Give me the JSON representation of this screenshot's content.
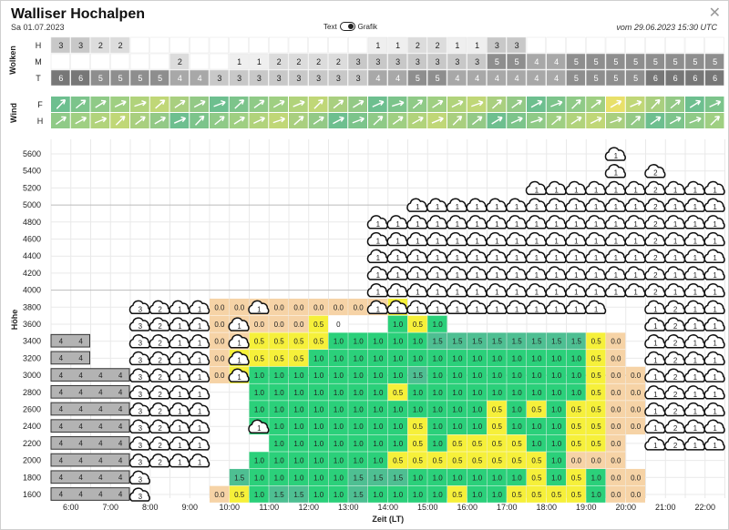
{
  "header": {
    "title": "Walliser Hochalpen",
    "date": "Sa 01.07.2023",
    "toggle_left": "Text",
    "toggle_right": "Grafik",
    "issued": "vom 29.06.2023 15:30 UTC",
    "close_icon": "close-icon"
  },
  "clouds": {
    "group_label": "Wolken",
    "rows": [
      {
        "label": "H",
        "values": [
          "3",
          "3",
          "2",
          "2",
          "",
          "",
          "",
          "",
          "",
          "",
          "",
          "",
          "",
          "",
          "",
          "",
          "1",
          "1",
          "2",
          "2",
          "1",
          "1",
          "3",
          "3",
          "",
          "",
          "",
          "",
          "",
          "",
          "",
          "",
          "",
          ""
        ]
      },
      {
        "label": "M",
        "values": [
          "",
          "",
          "",
          "",
          "",
          "",
          "2",
          "",
          "",
          "1",
          "1",
          "2",
          "2",
          "2",
          "2",
          "3",
          "3",
          "3",
          "3",
          "3",
          "3",
          "3",
          "5",
          "5",
          "4",
          "4",
          "5",
          "5",
          "5",
          "5",
          "5",
          "5",
          "5",
          "5"
        ]
      },
      {
        "label": "T",
        "values": [
          "6",
          "6",
          "5",
          "5",
          "5",
          "5",
          "4",
          "4",
          "3",
          "3",
          "3",
          "3",
          "3",
          "3",
          "3",
          "3",
          "4",
          "4",
          "5",
          "5",
          "4",
          "4",
          "4",
          "4",
          "4",
          "4",
          "5",
          "5",
          "5",
          "5",
          "6",
          "6",
          "6",
          "6"
        ]
      }
    ]
  },
  "wind": {
    "group_label": "Wind",
    "rows": [
      {
        "label": "F",
        "icon": "wind-arrow-icon"
      },
      {
        "label": "H",
        "icon": "wind-arrow-icon"
      }
    ]
  },
  "chart": {
    "y_axis_label": "Höhe",
    "x_axis_label": "Zeit (LT)",
    "y_ticks": [
      "1600",
      "1800",
      "2000",
      "2200",
      "2400",
      "2600",
      "2800",
      "3000",
      "3200",
      "3400",
      "3600",
      "3800",
      "4000",
      "4200",
      "4400",
      "4600",
      "4800",
      "5000",
      "5200",
      "5400",
      "5600"
    ],
    "x_ticks": [
      "6:00",
      "7:00",
      "8:00",
      "9:00",
      "10:00",
      "11:00",
      "12:00",
      "13:00",
      "14:00",
      "15:00",
      "16:00",
      "17:00",
      "18:00",
      "19:00",
      "20:00",
      "21:00",
      "22:00"
    ],
    "legend_colors": {
      "0.0": "#f6d3a6",
      "0.5": "#f6f03a",
      "1.0": "#2bd07a",
      "1.5": "#4ebf92",
      "4": "#b3b3b3"
    }
  },
  "chart_data": {
    "type": "heatmap",
    "x_axis_label": "Zeit (LT)",
    "y_axis_label": "Höhe",
    "x": [
      "6:00",
      "7:00",
      "8:00",
      "9:00",
      "10:00",
      "11:00",
      "12:00",
      "13:00",
      "14:00",
      "15:00",
      "16:00",
      "17:00",
      "18:00",
      "19:00",
      "20:00",
      "21:00",
      "22:00"
    ],
    "y": [
      "1600",
      "1800",
      "2000",
      "2200",
      "2400",
      "2600",
      "2800",
      "3000",
      "3200",
      "3400",
      "3600",
      "3800",
      "4000",
      "4200",
      "4400",
      "4600",
      "4800",
      "5000",
      "5200",
      "5400",
      "5600"
    ],
    "layers": [
      {
        "start_col": 8,
        "values_by_row": {
          "3800": [
            "0.0",
            "0.0",
            "0.0",
            "0.0",
            "0.0",
            "0.0",
            "0.0",
            "0.0",
            "0.0",
            "0.5",
            "",
            "",
            "",
            "",
            ""
          ],
          "3600": [
            "0.0",
            "0.0",
            "0.0",
            "0.0",
            "0.0",
            "0.5",
            "0",
            "",
            "",
            "1.0",
            "0.5",
            "1.0"
          ]
        }
      },
      {
        "start_col": 8,
        "values_by_row": {
          "3400": [
            "0.0",
            "0.0",
            "0.5",
            "0.5",
            "0.5",
            "0.5",
            "1.0",
            "1.0",
            "1.0",
            "1.0",
            "1.0",
            "1.5",
            "1.5",
            "1.5",
            "1.5",
            "1.5",
            "1.5",
            "1.5",
            "1.5",
            "0.5",
            "0.0"
          ],
          "3200": [
            "0.0",
            "0.5",
            "0.5",
            "0.5",
            "0.5",
            "1.0",
            "1.0",
            "1.0",
            "1.0",
            "1.0",
            "1.0",
            "1.0",
            "1.0",
            "1.0",
            "1.0",
            "1.0",
            "1.0",
            "1.0",
            "1.0",
            "0.5",
            "0.0"
          ],
          "3000": [
            "0.0",
            "0.5",
            "1.0",
            "1.0",
            "1.0",
            "1.0",
            "1.0",
            "1.0",
            "1.0",
            "1.0",
            "1.5",
            "1.0",
            "1.0",
            "1.0",
            "1.0",
            "1.0",
            "1.0",
            "1.0",
            "1.0",
            "0.5",
            "0.0",
            "0.0"
          ],
          "2800": [
            "",
            "",
            "1.0",
            "1.0",
            "1.0",
            "1.0",
            "1.0",
            "1.0",
            "1.0",
            "0.5",
            "1.0",
            "1.0",
            "1.0",
            "1.0",
            "1.0",
            "1.0",
            "1.0",
            "1.0",
            "1.0",
            "0.5",
            "0.0",
            "0.0"
          ]
        }
      },
      {
        "start_col": 10,
        "values_by_row": {
          "2600": [
            "1.0",
            "1.0",
            "1.0",
            "1.0",
            "1.0",
            "1.0",
            "1.0",
            "1.0",
            "1.0",
            "1.0",
            "1.0",
            "1.0",
            "0.5",
            "1.0",
            "0.5",
            "1.0",
            "0.5",
            "0.5",
            "0.0",
            "0.0"
          ],
          "2400": [
            "1.0",
            "1.0",
            "1.0",
            "1.0",
            "1.0",
            "1.0",
            "1.0",
            "1.0",
            "0.5",
            "1.0",
            "1.0",
            "1.0",
            "0.5",
            "1.0",
            "1.0",
            "1.0",
            "0.5",
            "0.5",
            "0.0",
            "0.0"
          ],
          "2200": [
            "",
            "1.0",
            "1.0",
            "1.0",
            "1.0",
            "1.0",
            "1.0",
            "1.0",
            "0.5",
            "1.0",
            "0.5",
            "0.5",
            "0.5",
            "0.5",
            "1.0",
            "1.0",
            "0.5",
            "0.5",
            "0.0"
          ],
          "2000": [
            "1.0",
            "1.0",
            "1.0",
            "1.0",
            "1.0",
            "1.0",
            "1.0",
            "0.5",
            "0.5",
            "0.5",
            "0.5",
            "0.5",
            "0.5",
            "0.5",
            "0.5",
            "1.0",
            "0.0",
            "0.0",
            "0.0"
          ]
        }
      },
      {
        "start_col": 8,
        "values_by_row": {
          "1800": [
            "",
            "1.5",
            "1.0",
            "1.0",
            "1.0",
            "1.0",
            "1.0",
            "1.5",
            "1.5",
            "1.5",
            "1.0",
            "1.0",
            "1.0",
            "1.0",
            "1.0",
            "1.0",
            "0.5",
            "1.0",
            "0.5",
            "1.0",
            "0.0",
            "0.0"
          ],
          "1600": [
            "0.0",
            "0.5",
            "1.0",
            "1.5",
            "1.5",
            "1.0",
            "1.0",
            "1.5",
            "1.0",
            "1.0",
            "1.0",
            "1.0",
            "0.5",
            "1.0",
            "1.0",
            "0.5",
            "0.5",
            "0.5",
            "0.5",
            "1.0",
            "0.0",
            "0.0"
          ]
        }
      }
    ]
  }
}
